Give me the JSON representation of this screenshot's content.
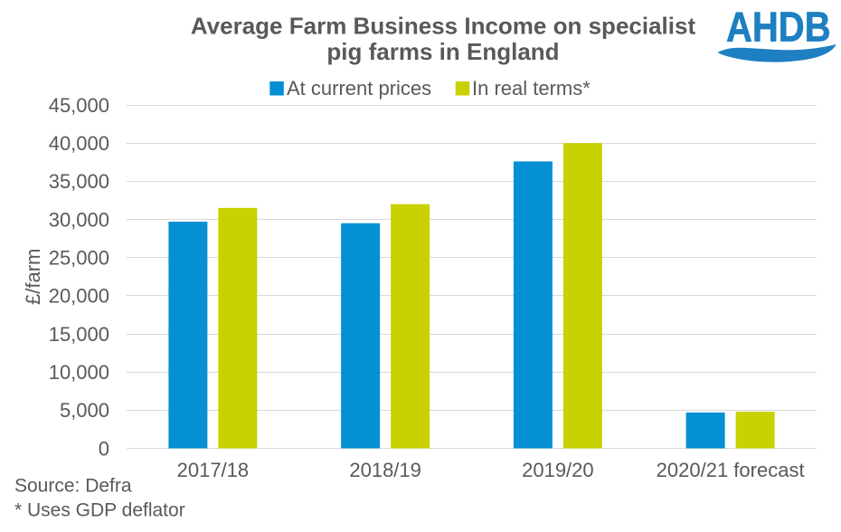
{
  "title": {
    "line1": "Average Farm Business Income on specialist",
    "line2": "pig farms in England"
  },
  "legend": {
    "items": [
      {
        "label": "At current prices"
      },
      {
        "label": "In real terms*"
      }
    ]
  },
  "footnotes": {
    "source": "Source: Defra",
    "deflator": "* Uses GDP deflator"
  },
  "logo": {
    "text": "AHDB"
  },
  "colors": {
    "bar_blue": "#0590D4",
    "bar_yellow": "#C9D100",
    "grid": "#D9D9D9",
    "text": "#595959",
    "logo_blue": "#1E7FC2"
  },
  "chart_data": {
    "type": "bar",
    "title": "Average Farm Business Income on specialist pig farms in England",
    "categories": [
      "2017/18",
      "2018/19",
      "2019/20",
      "2020/21 forecast"
    ],
    "series": [
      {
        "name": "At current prices",
        "color": "#0590D4",
        "values": [
          29700,
          29500,
          37600,
          4700
        ]
      },
      {
        "name": "In real terms*",
        "color": "#C9D100",
        "values": [
          31500,
          32000,
          40000,
          4800
        ]
      }
    ],
    "xlabel": "",
    "ylabel": "£/farm",
    "ylim": [
      0,
      45000
    ],
    "ytick_step": 5000,
    "grid": true,
    "legend_position": "top"
  }
}
